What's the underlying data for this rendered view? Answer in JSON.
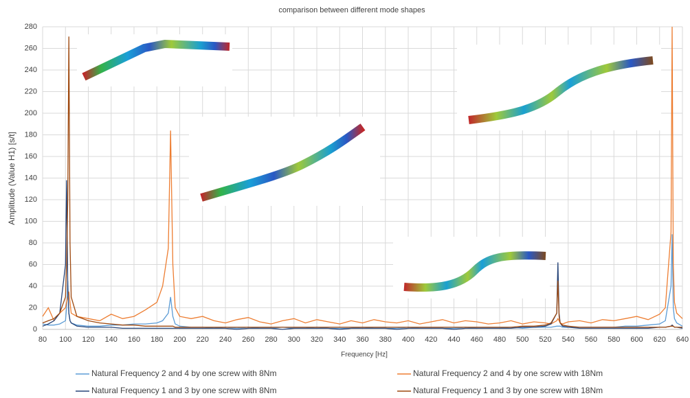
{
  "chart_data": {
    "type": "line",
    "title": "comparison between different mode shapes",
    "x_label": "Frequency [Hz]",
    "y_label": "Amplitude (Value H1) [s/t]",
    "x": [
      80,
      85,
      90,
      95,
      100,
      101,
      102,
      103,
      104,
      105,
      110,
      120,
      130,
      140,
      150,
      160,
      170,
      180,
      185,
      190,
      192,
      194,
      196,
      200,
      210,
      220,
      230,
      240,
      250,
      260,
      270,
      280,
      290,
      300,
      310,
      320,
      330,
      340,
      350,
      360,
      370,
      380,
      390,
      400,
      410,
      420,
      430,
      440,
      450,
      460,
      470,
      480,
      490,
      500,
      510,
      520,
      525,
      530,
      531,
      532,
      533,
      535,
      540,
      550,
      560,
      570,
      580,
      590,
      600,
      610,
      620,
      625,
      630,
      631,
      632,
      633,
      635,
      640
    ],
    "series": [
      {
        "name": "Natural Frequency 2 and 4 by one screw with 8Nm",
        "color": "#5b9bd5",
        "values": [
          5,
          4,
          4,
          5,
          8,
          20,
          45,
          15,
          8,
          6,
          4,
          3,
          3,
          4,
          4,
          5,
          5,
          6,
          8,
          15,
          30,
          12,
          5,
          3,
          2,
          2,
          1,
          2,
          1,
          2,
          1,
          1,
          2,
          1,
          1,
          2,
          1,
          1,
          1,
          2,
          1,
          1,
          1,
          2,
          1,
          1,
          1,
          1,
          2,
          1,
          1,
          1,
          2,
          1,
          2,
          2,
          2,
          3,
          3,
          3,
          3,
          2,
          2,
          2,
          2,
          2,
          2,
          3,
          3,
          4,
          5,
          8,
          40,
          88,
          20,
          10,
          6,
          3
        ]
      },
      {
        "name": "Natural Frequency 2 and 4 by one screw with 18Nm",
        "color": "#ed7d31",
        "values": [
          12,
          20,
          8,
          15,
          20,
          25,
          30,
          35,
          25,
          15,
          12,
          10,
          8,
          14,
          10,
          12,
          18,
          25,
          40,
          75,
          184,
          60,
          20,
          12,
          10,
          12,
          8,
          6,
          9,
          11,
          7,
          5,
          8,
          10,
          6,
          9,
          7,
          5,
          8,
          6,
          9,
          7,
          6,
          8,
          5,
          7,
          9,
          6,
          8,
          7,
          5,
          6,
          8,
          5,
          7,
          6,
          5,
          8,
          10,
          8,
          6,
          5,
          7,
          8,
          6,
          9,
          8,
          10,
          12,
          9,
          14,
          20,
          90,
          280,
          60,
          25,
          15,
          10
        ]
      },
      {
        "name": "Natural Frequency 1 and 3 by one screw with 8Nm",
        "color": "#264478",
        "values": [
          3,
          5,
          8,
          15,
          60,
          138,
          40,
          15,
          8,
          6,
          3,
          2,
          2,
          2,
          1,
          1,
          1,
          1,
          1,
          1,
          1,
          1,
          1,
          1,
          1,
          1,
          1,
          1,
          0,
          1,
          1,
          1,
          0,
          1,
          1,
          1,
          1,
          0,
          1,
          1,
          1,
          1,
          0,
          1,
          1,
          1,
          1,
          0,
          1,
          1,
          1,
          1,
          1,
          2,
          2,
          3,
          5,
          15,
          62,
          15,
          6,
          3,
          2,
          1,
          1,
          1,
          1,
          1,
          1,
          1,
          2,
          2,
          3,
          4,
          3,
          2,
          2,
          1
        ]
      },
      {
        "name": "Natural Frequency 1 and 3 by one screw with 18Nm",
        "color": "#9e480e",
        "values": [
          6,
          8,
          10,
          15,
          30,
          60,
          120,
          271,
          80,
          30,
          12,
          8,
          6,
          5,
          4,
          4,
          3,
          3,
          3,
          3,
          3,
          3,
          2,
          2,
          2,
          2,
          2,
          2,
          2,
          2,
          2,
          2,
          2,
          2,
          2,
          2,
          2,
          2,
          2,
          2,
          2,
          2,
          2,
          2,
          2,
          2,
          2,
          2,
          2,
          2,
          2,
          2,
          2,
          3,
          3,
          4,
          6,
          15,
          45,
          12,
          6,
          4,
          3,
          2,
          2,
          2,
          2,
          2,
          2,
          2,
          2,
          2,
          3,
          3,
          3,
          2,
          2,
          2
        ]
      }
    ],
    "xlim": [
      80,
      640
    ],
    "xticks": [
      80,
      100,
      120,
      140,
      160,
      180,
      200,
      220,
      240,
      260,
      280,
      300,
      320,
      340,
      360,
      380,
      400,
      420,
      440,
      460,
      480,
      500,
      520,
      540,
      560,
      580,
      600,
      620,
      640
    ],
    "ylim": [
      0,
      280
    ],
    "yticks": [
      0,
      20,
      40,
      60,
      80,
      100,
      120,
      140,
      160,
      180,
      200,
      220,
      240,
      260,
      280
    ],
    "grid": true
  }
}
